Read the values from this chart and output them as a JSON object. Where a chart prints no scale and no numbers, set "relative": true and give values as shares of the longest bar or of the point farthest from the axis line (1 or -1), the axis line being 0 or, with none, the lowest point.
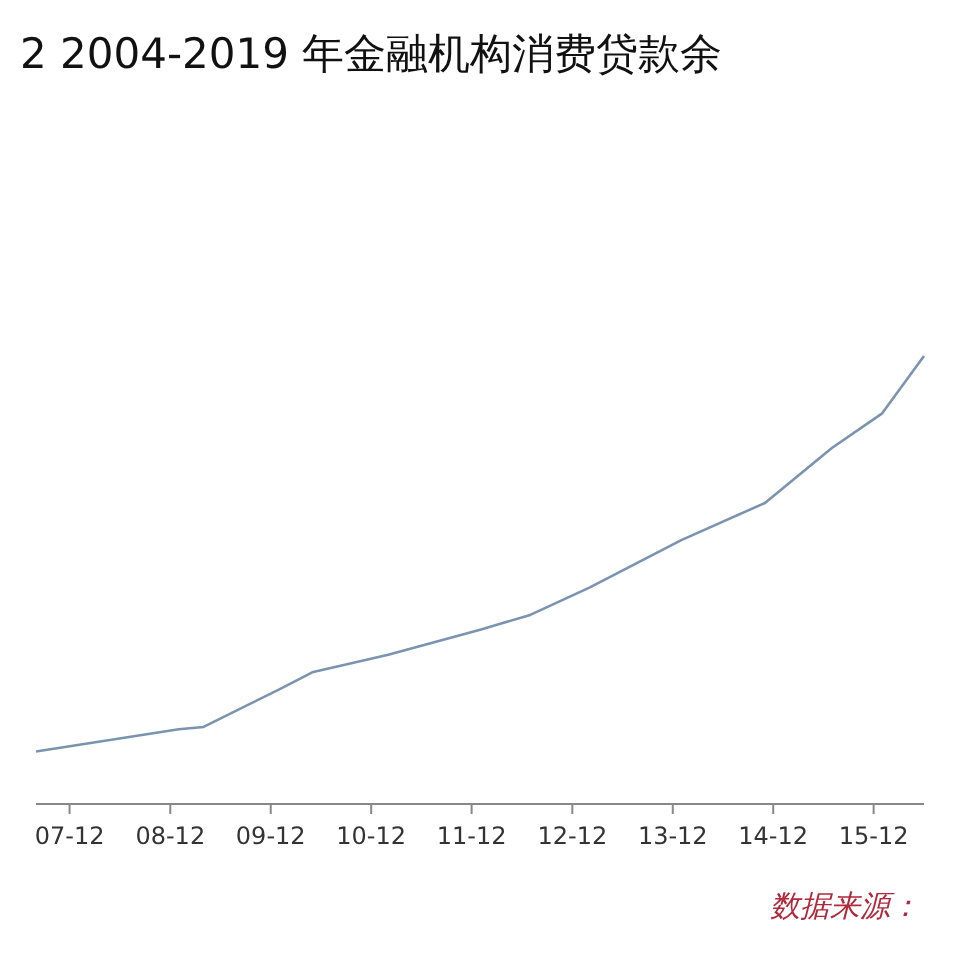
{
  "chart_data": {
    "type": "line",
    "title": "2 2004-2019 年金融机构消费贷款余",
    "relative": true,
    "x": [
      "2007-08",
      "2009-01",
      "2009-04",
      "2010-01",
      "2010-05",
      "2011-02",
      "2012-01",
      "2012-07",
      "2013-02",
      "2014-01",
      "2014-11",
      "2015-07",
      "2016-01",
      "2016-06"
    ],
    "series": [
      {
        "color": "#7a93b0",
        "values": [
          0.117,
          0.167,
          0.172,
          0.256,
          0.294,
          0.333,
          0.389,
          0.422,
          0.483,
          0.589,
          0.672,
          0.794,
          0.872,
          1
        ]
      }
    ],
    "xlim": [
      "2007-08",
      "2016-06"
    ],
    "xticks": [
      {
        "value": "2007-12",
        "label": "07-12"
      },
      {
        "value": "2008-12",
        "label": "08-12"
      },
      {
        "value": "2009-12",
        "label": "09-12"
      },
      {
        "value": "2010-12",
        "label": "10-12"
      },
      {
        "value": "2011-12",
        "label": "11-12"
      },
      {
        "value": "2012-12",
        "label": "12-12"
      },
      {
        "value": "2013-12",
        "label": "13-12"
      },
      {
        "value": "2014-12",
        "label": "14-12"
      },
      {
        "value": "2015-12",
        "label": "15-12"
      }
    ],
    "annotations": [
      "数据来源："
    ]
  }
}
